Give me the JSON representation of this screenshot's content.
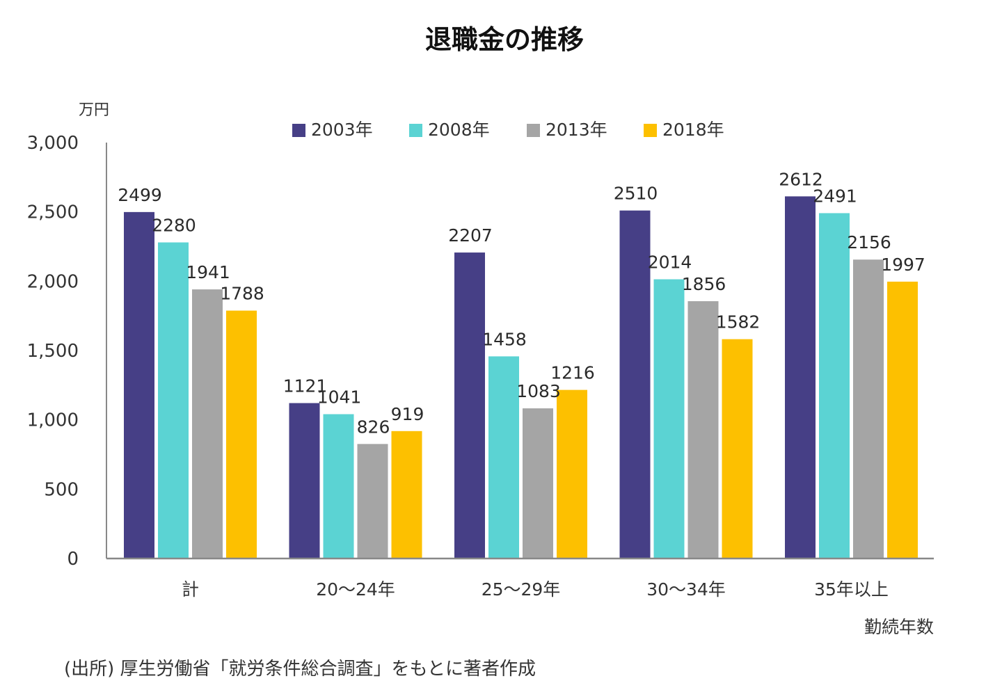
{
  "chart_data": {
    "type": "bar",
    "title": "退職金の推移",
    "ylabel": "万円",
    "xlabel": "勤続年数",
    "ylim": [
      0,
      3000
    ],
    "yticks": [
      0,
      500,
      1000,
      1500,
      2000,
      2500,
      3000
    ],
    "ytick_labels": [
      "0",
      "500",
      "1,000",
      "1,500",
      "2,000",
      "2,500",
      "3,000"
    ],
    "grid": false,
    "legend_position": "top-center",
    "categories": [
      "計",
      "20～24年",
      "25～29年",
      "30～34年",
      "35年以上"
    ],
    "series": [
      {
        "name": "2003年",
        "color": "#463f86",
        "values": [
          2499,
          1121,
          2207,
          2510,
          2612
        ]
      },
      {
        "name": "2008年",
        "color": "#5bd3d3",
        "values": [
          2280,
          1041,
          1458,
          2014,
          2491
        ]
      },
      {
        "name": "2013年",
        "color": "#a5a5a5",
        "values": [
          1941,
          826,
          1083,
          1856,
          2156
        ]
      },
      {
        "name": "2018年",
        "color": "#fdc000",
        "values": [
          1788,
          919,
          1216,
          1582,
          1997
        ]
      }
    ],
    "source_note": "(出所) 厚生労働省「就労条件総合調査」をもとに著者作成"
  }
}
